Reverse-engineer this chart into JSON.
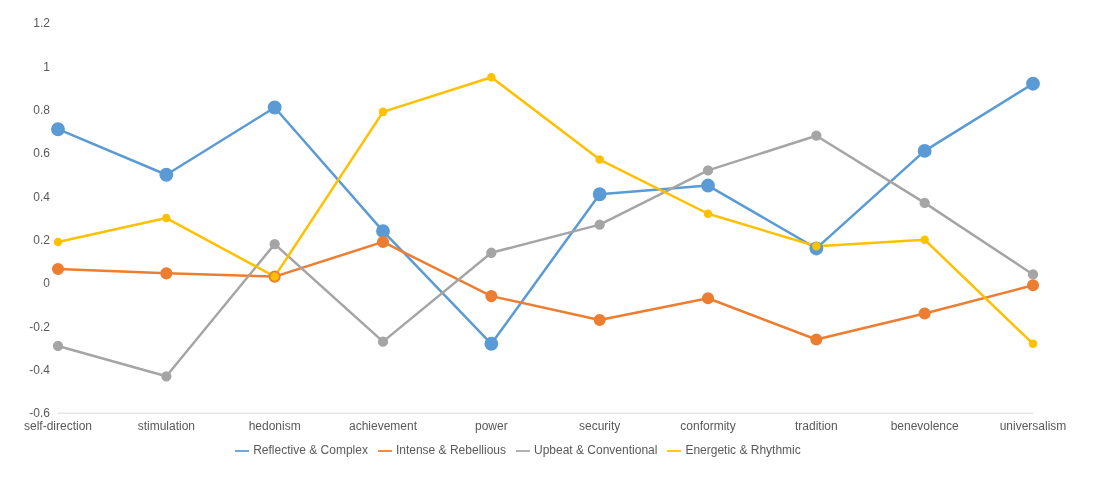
{
  "chart_data": {
    "type": "line",
    "categories": [
      "self-direction",
      "stimulation",
      "hedonism",
      "achievement",
      "power",
      "security",
      "conformity",
      "tradition",
      "benevolence",
      "universalism"
    ],
    "series": [
      {
        "name": "Reflective & Complex",
        "color": "#5b9bd5",
        "values": [
          0.71,
          0.5,
          0.81,
          0.24,
          -0.28,
          0.41,
          0.45,
          0.16,
          0.61,
          0.92
        ]
      },
      {
        "name": "Intense & Rebellious",
        "color": "#ed7d31",
        "values": [
          0.065,
          0.045,
          0.03,
          0.19,
          -0.06,
          -0.17,
          -0.07,
          -0.26,
          -0.14,
          -0.01
        ]
      },
      {
        "name": "Upbeat & Conventional",
        "color": "#a5a5a5",
        "values": [
          -0.29,
          -0.43,
          0.18,
          -0.27,
          0.14,
          0.27,
          0.52,
          0.68,
          0.37,
          0.04
        ]
      },
      {
        "name": "Energetic & Rhythmic",
        "color": "#ffc000",
        "values": [
          0.19,
          0.3,
          0.03,
          0.79,
          0.95,
          0.57,
          0.32,
          0.17,
          0.2,
          -0.28
        ]
      }
    ],
    "ylim": [
      -0.6,
      1.2
    ],
    "yticks": [
      -0.6,
      -0.4,
      -0.2,
      0,
      0.2,
      0.4,
      0.6,
      0.8,
      1,
      1.2
    ],
    "grid": false,
    "legend": "bottom",
    "marker": "circle",
    "line_style": "solid"
  }
}
